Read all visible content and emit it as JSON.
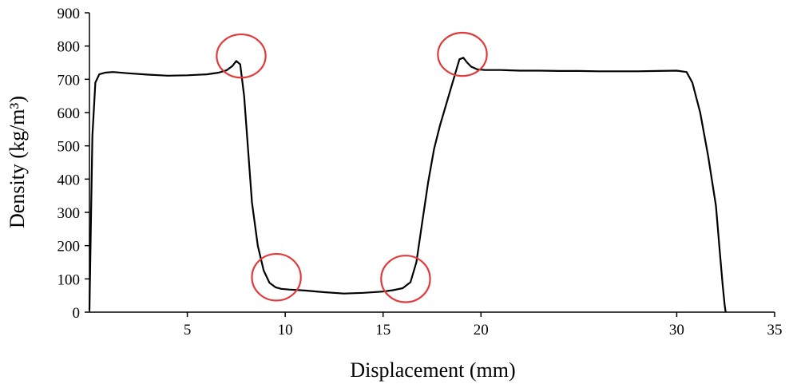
{
  "chart_data": {
    "type": "line",
    "xlabel": "Displacement (mm)",
    "ylabel": "Density (kg/m³)",
    "xlim": [
      0,
      35
    ],
    "ylim": [
      0,
      900
    ],
    "x_ticks": [
      5,
      10,
      15,
      20,
      30,
      35
    ],
    "x_tick_labels": [
      "5",
      "10",
      "15",
      "20",
      "30",
      "35"
    ],
    "y_ticks": [
      0,
      100,
      200,
      300,
      400,
      500,
      600,
      700,
      800,
      900
    ],
    "y_tick_labels": [
      "0",
      "100",
      "200",
      "300",
      "400",
      "500",
      "600",
      "700",
      "800",
      "900"
    ],
    "grid": false,
    "series": [
      {
        "color": "#000000",
        "x": [
          0.0,
          0.15,
          0.3,
          0.5,
          0.8,
          1.2,
          2.0,
          3.0,
          4.0,
          5.0,
          6.0,
          6.6,
          7.0,
          7.3,
          7.5,
          7.7,
          7.9,
          8.1,
          8.3,
          8.6,
          8.9,
          9.2,
          9.5,
          9.8,
          10.2,
          11.0,
          12.0,
          13.0,
          14.0,
          15.0,
          15.5,
          16.0,
          16.4,
          16.7,
          17.0,
          17.3,
          17.6,
          17.9,
          18.3,
          18.7,
          18.9,
          19.1,
          19.3,
          19.5,
          19.8,
          20.2,
          21.0,
          22.0,
          23.0,
          24.0,
          25.0,
          26.0,
          27.0,
          28.0,
          29.0,
          30.0,
          30.5,
          30.8,
          31.2,
          31.6,
          32.0,
          32.2,
          32.35,
          32.45,
          32.5
        ],
        "y": [
          5,
          530,
          690,
          715,
          720,
          722,
          718,
          714,
          711,
          712,
          715,
          720,
          727,
          740,
          755,
          745,
          650,
          490,
          330,
          200,
          125,
          88,
          75,
          70,
          68,
          65,
          60,
          56,
          58,
          62,
          66,
          72,
          90,
          150,
          270,
          390,
          490,
          560,
          640,
          720,
          760,
          765,
          750,
          738,
          730,
          728,
          728,
          726,
          726,
          725,
          725,
          724,
          724,
          724,
          725,
          726,
          722,
          690,
          600,
          470,
          320,
          180,
          80,
          20,
          0
        ]
      }
    ],
    "annotations": [
      {
        "type": "circle",
        "color": "#e03a3a",
        "cx": 7.75,
        "cy": 770,
        "rx": 1.25,
        "ry": 65
      },
      {
        "type": "circle",
        "color": "#e03a3a",
        "cx": 9.55,
        "cy": 105,
        "rx": 1.25,
        "ry": 70
      },
      {
        "type": "circle",
        "color": "#e03a3a",
        "cx": 16.15,
        "cy": 100,
        "rx": 1.25,
        "ry": 70
      },
      {
        "type": "circle",
        "color": "#e03a3a",
        "cx": 19.05,
        "cy": 775,
        "rx": 1.25,
        "ry": 65
      }
    ]
  }
}
